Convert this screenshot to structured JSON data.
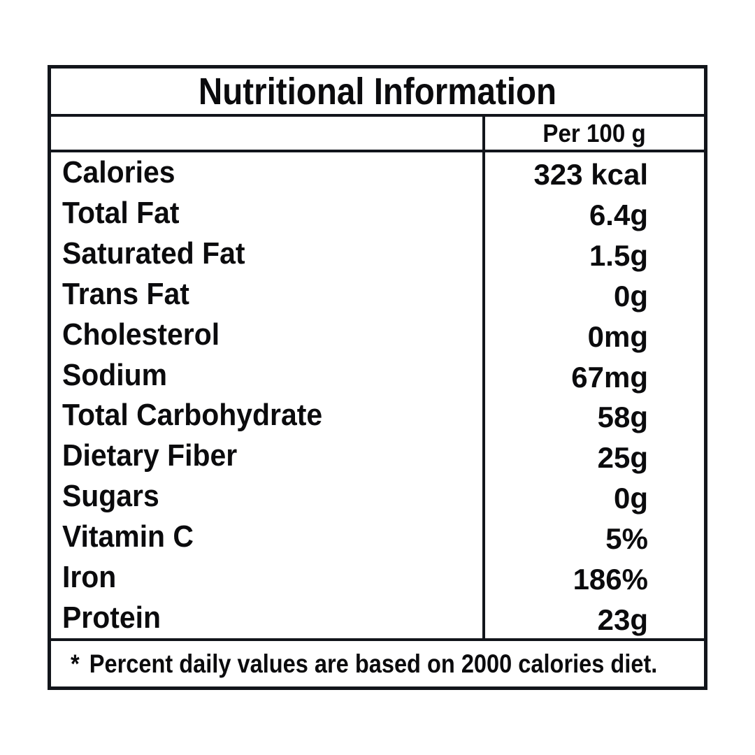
{
  "table": {
    "title": "Nutritional Information",
    "column_header": "Per 100 g",
    "rows": [
      {
        "label": "Calories",
        "value": "323 kcal"
      },
      {
        "label": "Total Fat",
        "value": "6.4g"
      },
      {
        "label": "Saturated Fat",
        "value": "1.5g"
      },
      {
        "label": "Trans Fat",
        "value": "0g"
      },
      {
        "label": "Cholesterol",
        "value": "0mg"
      },
      {
        "label": "Sodium",
        "value": "67mg"
      },
      {
        "label": "Total Carbohydrate",
        "value": "58g"
      },
      {
        "label": "Dietary Fiber",
        "value": "25g"
      },
      {
        "label": "Sugars",
        "value": "0g"
      },
      {
        "label": "Vitamin C",
        "value": "5%"
      },
      {
        "label": "Iron",
        "value": "186%"
      },
      {
        "label": "Protein",
        "value": "23g"
      }
    ],
    "footnote_marker": "*",
    "footnote_text": "Percent daily values are based on 2000 calories diet.",
    "colors": {
      "border": "#12151b",
      "text": "#0b0b0d",
      "background": "#ffffff"
    }
  }
}
